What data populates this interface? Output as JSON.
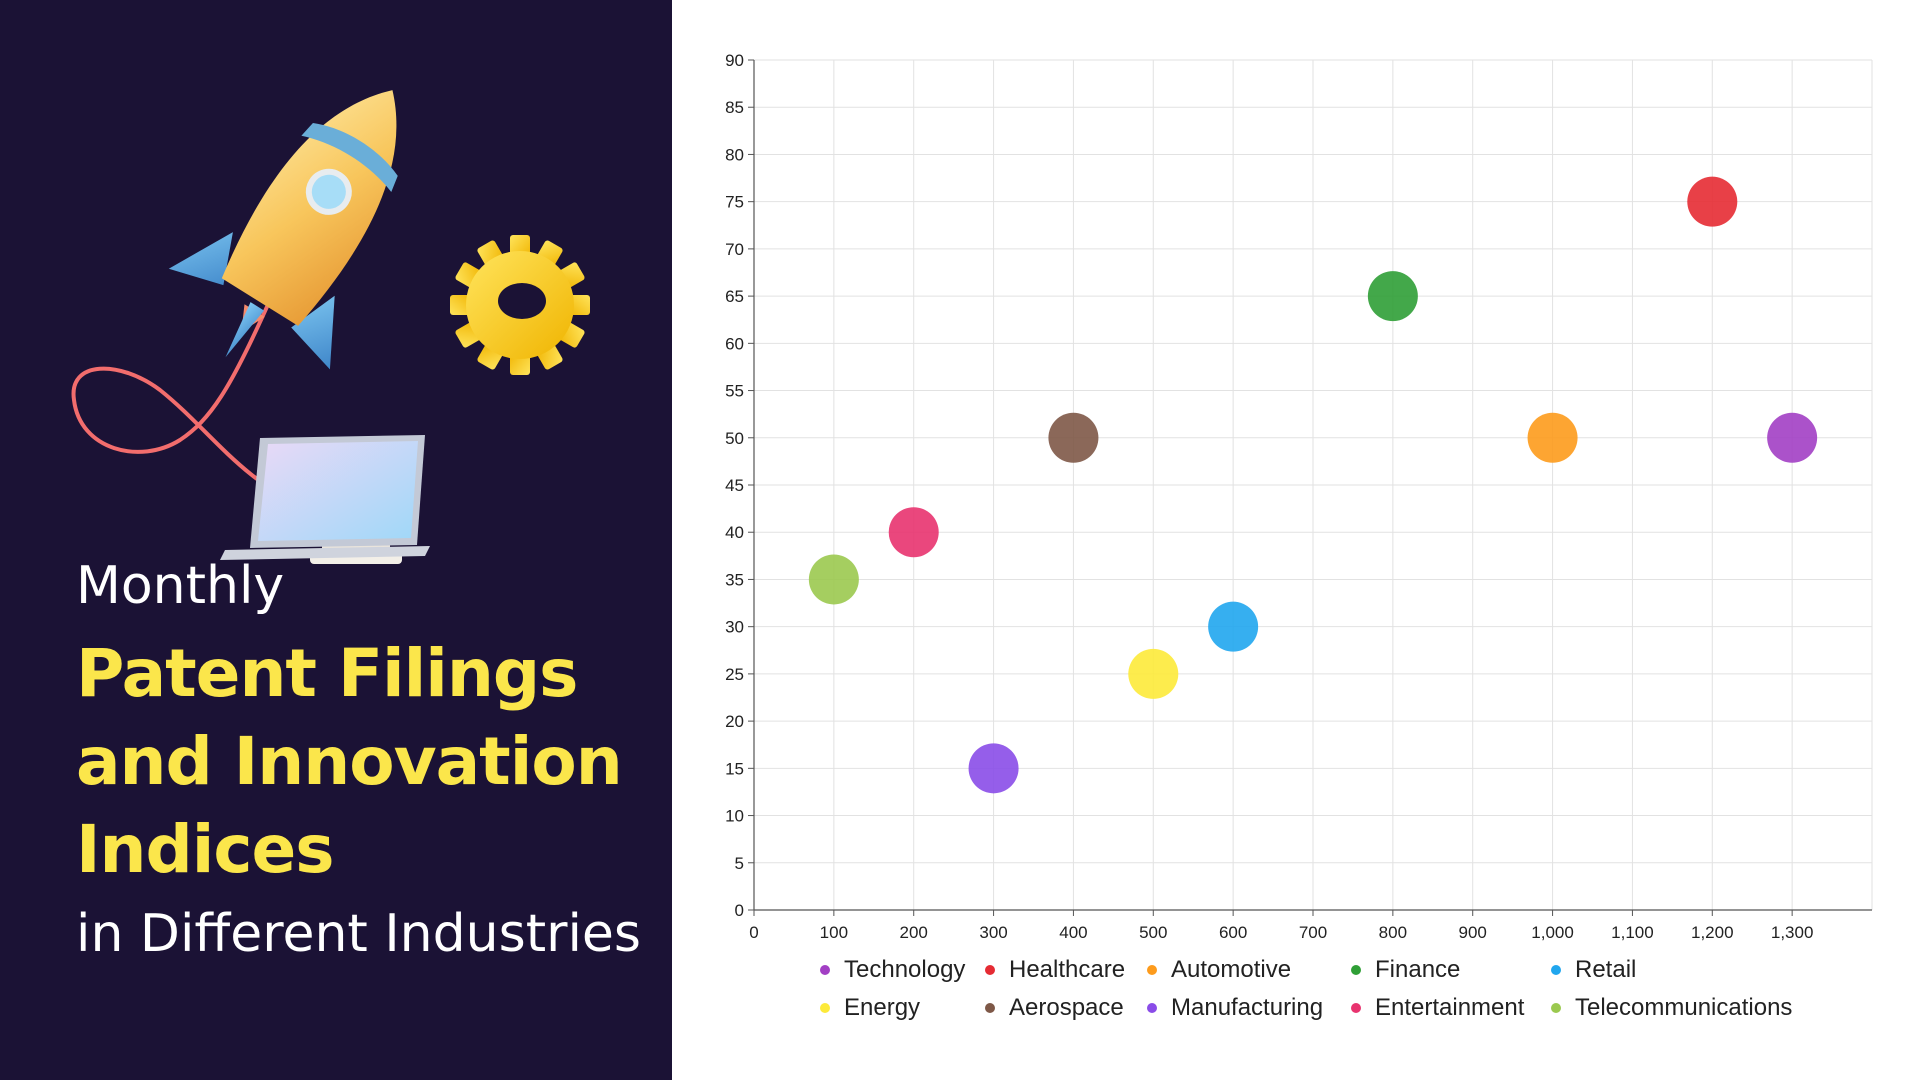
{
  "slide": {
    "title_top": "Monthly",
    "title_main_lines": [
      "Patent Filings",
      "and Innovation",
      "Indices"
    ],
    "title_bottom": "in Different Industries",
    "background_color": "#1b1235",
    "title_accent_color": "#fbe64b"
  },
  "illustration": {
    "icons": [
      "rocket-icon",
      "gear-icon",
      "laptop-icon",
      "cable-icon"
    ]
  },
  "chart_data": {
    "type": "scatter",
    "xlim": [
      0,
      1400
    ],
    "ylim": [
      0,
      90
    ],
    "x_ticks": [
      0,
      100,
      200,
      300,
      400,
      500,
      600,
      700,
      800,
      900,
      1000,
      1100,
      1200,
      1300
    ],
    "x_tick_labels": [
      "0",
      "100",
      "200",
      "300",
      "400",
      "500",
      "600",
      "700",
      "800",
      "900",
      "1,000",
      "1,100",
      "1,200",
      "1,300"
    ],
    "y_ticks": [
      0,
      5,
      10,
      15,
      20,
      25,
      30,
      35,
      40,
      45,
      50,
      55,
      60,
      65,
      70,
      75,
      80,
      85,
      90
    ],
    "grid": true,
    "legend_position": "bottom",
    "series": [
      {
        "name": "Technology",
        "color": "#a23fc4",
        "x": 1300,
        "y": 50
      },
      {
        "name": "Healthcare",
        "color": "#e52b33",
        "x": 1200,
        "y": 75
      },
      {
        "name": "Automotive",
        "color": "#fd9b1c",
        "x": 1000,
        "y": 50
      },
      {
        "name": "Finance",
        "color": "#2f9f36",
        "x": 800,
        "y": 65
      },
      {
        "name": "Retail",
        "color": "#20a6ee",
        "x": 600,
        "y": 30
      },
      {
        "name": "Energy",
        "color": "#fdea3a",
        "x": 500,
        "y": 25
      },
      {
        "name": "Aerospace",
        "color": "#7e5847",
        "x": 400,
        "y": 50
      },
      {
        "name": "Manufacturing",
        "color": "#8a4ce8",
        "x": 300,
        "y": 15
      },
      {
        "name": "Entertainment",
        "color": "#e8336f",
        "x": 200,
        "y": 40
      },
      {
        "name": "Telecommunications",
        "color": "#9bc94f",
        "x": 100,
        "y": 35
      }
    ]
  }
}
